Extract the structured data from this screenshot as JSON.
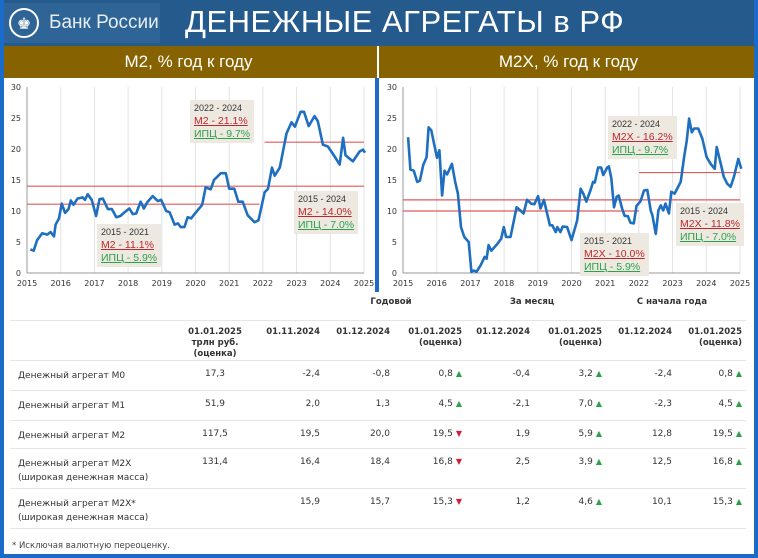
{
  "header": {
    "bank_name": "Банк России",
    "title": "ДЕНЕЖНЫЕ АГРЕГАТЫ в РФ",
    "emblem_icon": "double-eagle-emblem"
  },
  "colors": {
    "line": "#1f6fc0",
    "reference": "#e05a5a",
    "header": "#245a8c",
    "band": "#866300",
    "up": "#2aa14a",
    "down": "#d0203a"
  },
  "chart_data": [
    {
      "type": "line",
      "title": "M2, % год к году",
      "xlim": [
        2015,
        2025
      ],
      "ylim": [
        0,
        30
      ],
      "xticks": [
        "2015",
        "2016",
        "2017",
        "2018",
        "2019",
        "2020",
        "2021",
        "2022",
        "2023",
        "2024",
        "2025"
      ],
      "yticks": [
        "0",
        "5",
        "10",
        "15",
        "20",
        "25",
        "30"
      ],
      "grid": "vertical",
      "series": [
        {
          "values": [
            [
              2015.1,
              3.8
            ],
            [
              2015.2,
              3.6
            ],
            [
              2015.3,
              5.3
            ],
            [
              2015.45,
              6.4
            ],
            [
              2015.6,
              6.2
            ],
            [
              2015.7,
              6.6
            ],
            [
              2015.8,
              5.9
            ],
            [
              2015.85,
              7.8
            ],
            [
              2015.95,
              8.8
            ],
            [
              2016.03,
              11.2
            ],
            [
              2016.13,
              9.7
            ],
            [
              2016.23,
              10.3
            ],
            [
              2016.3,
              11.7
            ],
            [
              2016.38,
              11
            ],
            [
              2016.5,
              12
            ],
            [
              2016.65,
              12.2
            ],
            [
              2016.72,
              11.8
            ],
            [
              2016.8,
              12.7
            ],
            [
              2016.92,
              11.8
            ],
            [
              2017.05,
              9.2
            ],
            [
              2017.15,
              11.9
            ],
            [
              2017.25,
              12
            ],
            [
              2017.4,
              10.3
            ],
            [
              2017.52,
              10.3
            ],
            [
              2017.65,
              9
            ],
            [
              2017.77,
              9.2
            ],
            [
              2017.94,
              10
            ],
            [
              2018.04,
              10.4
            ],
            [
              2018.14,
              9.5
            ],
            [
              2018.24,
              9.6
            ],
            [
              2018.37,
              11.5
            ],
            [
              2018.47,
              10.4
            ],
            [
              2018.58,
              11.5
            ],
            [
              2018.73,
              12.4
            ],
            [
              2018.88,
              11.6
            ],
            [
              2018.98,
              11.8
            ],
            [
              2019.13,
              10
            ],
            [
              2019.23,
              9.8
            ],
            [
              2019.38,
              7.8
            ],
            [
              2019.48,
              8
            ],
            [
              2019.56,
              7.4
            ],
            [
              2019.67,
              7.4
            ],
            [
              2019.77,
              9
            ],
            [
              2019.87,
              8.8
            ],
            [
              2019.97,
              9.5
            ],
            [
              2020.2,
              11
            ],
            [
              2020.3,
              13.8
            ],
            [
              2020.45,
              13.5
            ],
            [
              2020.55,
              15
            ],
            [
              2020.75,
              16.1
            ],
            [
              2020.9,
              16.1
            ],
            [
              2021.0,
              13.6
            ],
            [
              2021.15,
              13.6
            ],
            [
              2021.27,
              11.5
            ],
            [
              2021.4,
              11.5
            ],
            [
              2021.55,
              9.3
            ],
            [
              2021.75,
              8.2
            ],
            [
              2021.87,
              8.5
            ],
            [
              2022.05,
              13
            ],
            [
              2022.15,
              13.6
            ],
            [
              2022.27,
              17
            ],
            [
              2022.35,
              15.7
            ],
            [
              2022.5,
              17
            ],
            [
              2022.7,
              22.5
            ],
            [
              2022.85,
              24.3
            ],
            [
              2022.95,
              23.6
            ],
            [
              2023.12,
              26
            ],
            [
              2023.22,
              26
            ],
            [
              2023.36,
              23.7
            ],
            [
              2023.53,
              25.3
            ],
            [
              2023.63,
              24.5
            ],
            [
              2023.78,
              20.7
            ],
            [
              2023.93,
              20.4
            ],
            [
              2024.08,
              19.2
            ],
            [
              2024.28,
              17.5
            ],
            [
              2024.38,
              21.8
            ],
            [
              2024.45,
              19
            ],
            [
              2024.67,
              18
            ],
            [
              2024.87,
              19.6
            ],
            [
              2024.97,
              19.9
            ],
            [
              2025.03,
              19.4
            ]
          ]
        }
      ],
      "reference_lines": [
        {
          "value": 11.1,
          "from": 2015,
          "to": 2021.9
        },
        {
          "value": 14.0,
          "from": 2015,
          "to": 2025
        },
        {
          "value": 21.1,
          "from": 2022.05,
          "to": 2025
        }
      ],
      "annotations": [
        {
          "period": "2022 - 2024",
          "agg": "M2 - 21.1%",
          "cpi": "ИПЦ - 9.7%"
        },
        {
          "period": "2015 - 2024",
          "agg": "M2 - 14.0%",
          "cpi": "ИПЦ - 7.0%"
        },
        {
          "period": "2015 - 2021",
          "agg": "M2 - 11.1%",
          "cpi": "ИПЦ - 5.9%"
        }
      ]
    },
    {
      "type": "line",
      "title": "M2X, % год к году",
      "xlim": [
        2015,
        2025
      ],
      "ylim": [
        0,
        30
      ],
      "xticks": [
        "2015",
        "2016",
        "2017",
        "2018",
        "2019",
        "2020",
        "2021",
        "2022",
        "2023",
        "2024",
        "2025"
      ],
      "yticks": [
        "0",
        "5",
        "10",
        "15",
        "20",
        "25",
        "30"
      ],
      "grid": "vertical",
      "series": [
        {
          "values": [
            [
              2015.15,
              21.9
            ],
            [
              2015.22,
              16.7
            ],
            [
              2015.32,
              16.5
            ],
            [
              2015.42,
              14.7
            ],
            [
              2015.5,
              14.9
            ],
            [
              2015.6,
              17.4
            ],
            [
              2015.7,
              18.7
            ],
            [
              2015.76,
              23.5
            ],
            [
              2015.84,
              23
            ],
            [
              2015.96,
              19.8
            ],
            [
              2016.01,
              18.6
            ],
            [
              2016.08,
              19.8
            ],
            [
              2016.16,
              12.5
            ],
            [
              2016.23,
              16.5
            ],
            [
              2016.31,
              15.9
            ],
            [
              2016.45,
              17.6
            ],
            [
              2016.55,
              14.7
            ],
            [
              2016.63,
              12.8
            ],
            [
              2016.72,
              7.4
            ],
            [
              2016.82,
              5.8
            ],
            [
              2016.95,
              5
            ],
            [
              2017.03,
              0.2
            ],
            [
              2017.1,
              0.4
            ],
            [
              2017.18,
              0.2
            ],
            [
              2017.3,
              1.2
            ],
            [
              2017.42,
              2.6
            ],
            [
              2017.48,
              2.3
            ],
            [
              2017.54,
              4.5
            ],
            [
              2017.62,
              3.6
            ],
            [
              2017.8,
              4.7
            ],
            [
              2017.91,
              5.5
            ],
            [
              2017.99,
              7.4
            ],
            [
              2018.06,
              5.8
            ],
            [
              2018.19,
              5.8
            ],
            [
              2018.37,
              10.6
            ],
            [
              2018.48,
              10.1
            ],
            [
              2018.58,
              9.6
            ],
            [
              2018.68,
              11.8
            ],
            [
              2018.8,
              11.2
            ],
            [
              2018.9,
              11.1
            ],
            [
              2019.01,
              12.4
            ],
            [
              2019.08,
              10.4
            ],
            [
              2019.18,
              11.8
            ],
            [
              2019.36,
              7.7
            ],
            [
              2019.43,
              7.7
            ],
            [
              2019.53,
              6.6
            ],
            [
              2019.58,
              7.4
            ],
            [
              2019.67,
              6.6
            ],
            [
              2019.74,
              7.5
            ],
            [
              2019.87,
              7.4
            ],
            [
              2020.0,
              5.3
            ],
            [
              2020.17,
              8.5
            ],
            [
              2020.27,
              13.6
            ],
            [
              2020.35,
              12.8
            ],
            [
              2020.44,
              11.5
            ],
            [
              2020.56,
              13.3
            ],
            [
              2020.64,
              14.7
            ],
            [
              2020.69,
              14.6
            ],
            [
              2020.79,
              17
            ],
            [
              2020.88,
              17
            ],
            [
              2020.94,
              15.8
            ],
            [
              2021.06,
              17
            ],
            [
              2021.11,
              17.2
            ],
            [
              2021.18,
              15.3
            ],
            [
              2021.26,
              10.6
            ],
            [
              2021.34,
              12.3
            ],
            [
              2021.4,
              12.5
            ],
            [
              2021.5,
              10.4
            ],
            [
              2021.58,
              9.2
            ],
            [
              2021.67,
              9.2
            ],
            [
              2021.75,
              8.1
            ],
            [
              2021.85,
              8
            ],
            [
              2021.93,
              10.8
            ],
            [
              2022.05,
              11.6
            ],
            [
              2022.15,
              13.3
            ],
            [
              2022.25,
              13.4
            ],
            [
              2022.35,
              10.1
            ],
            [
              2022.4,
              9.3
            ],
            [
              2022.5,
              6.3
            ],
            [
              2022.58,
              10.1
            ],
            [
              2022.65,
              10.9
            ],
            [
              2022.72,
              10.1
            ],
            [
              2022.79,
              11.2
            ],
            [
              2022.89,
              9.6
            ],
            [
              2022.96,
              13.1
            ],
            [
              2023.06,
              12.8
            ],
            [
              2023.24,
              14.7
            ],
            [
              2023.34,
              18.7
            ],
            [
              2023.42,
              21.4
            ],
            [
              2023.49,
              24.9
            ],
            [
              2023.57,
              22.7
            ],
            [
              2023.64,
              23.3
            ],
            [
              2023.76,
              23.3
            ],
            [
              2023.88,
              21.7
            ],
            [
              2024.01,
              18.7
            ],
            [
              2024.13,
              17.6
            ],
            [
              2024.25,
              16.8
            ],
            [
              2024.31,
              20.3
            ],
            [
              2024.43,
              17.6
            ],
            [
              2024.52,
              15.5
            ],
            [
              2024.62,
              14.4
            ],
            [
              2024.72,
              13.9
            ],
            [
              2024.82,
              15.5
            ],
            [
              2024.95,
              18.4
            ],
            [
              2025.04,
              16.8
            ]
          ]
        }
      ],
      "reference_lines": [
        {
          "value": 10.0,
          "from": 2015,
          "to": 2022
        },
        {
          "value": 11.8,
          "from": 2015,
          "to": 2025
        },
        {
          "value": 16.2,
          "from": 2022,
          "to": 2025
        }
      ],
      "annotations": [
        {
          "period": "2022 - 2024",
          "agg": "M2X - 16.2%",
          "cpi": "ИПЦ - 9.7%"
        },
        {
          "period": "2015 - 2024",
          "agg": "M2X - 11.8%",
          "cpi": "ИПЦ - 7.0%"
        },
        {
          "period": "2015 - 2021",
          "agg": "M2X - 10.0%",
          "cpi": "ИПЦ - 5.9%"
        }
      ]
    }
  ],
  "table": {
    "groups": [
      "Годовой",
      "За месяц",
      "С начала года"
    ],
    "columns": [
      [
        "01.01.2025",
        "трлн руб.",
        "(оценка)"
      ],
      [
        "01.11.2024"
      ],
      [
        "01.12.2024"
      ],
      [
        "01.01.2025",
        "(оценка)"
      ],
      [
        "01.12.2024"
      ],
      [
        "01.01.2025",
        "(оценка)"
      ],
      [
        "01.12.2024"
      ],
      [
        "01.01.2025",
        "(оценка)"
      ]
    ],
    "rows": [
      {
        "name": "Денежный агрегат M0",
        "sub": "",
        "values": [
          "17,3",
          "-2,4",
          "-0,8",
          "0,8",
          "-0,4",
          "3,2",
          "-2,4",
          "0,8"
        ],
        "arrows": [
          "up",
          "up",
          "up"
        ]
      },
      {
        "name": "Денежный агрегат M1",
        "sub": "",
        "values": [
          "51,9",
          "2,0",
          "1,3",
          "4,5",
          "-2,1",
          "7,0",
          "-2,3",
          "4,5"
        ],
        "arrows": [
          "up",
          "up",
          "up"
        ]
      },
      {
        "name": "Денежный агрегат M2",
        "sub": "",
        "values": [
          "117,5",
          "19,5",
          "20,0",
          "19,5",
          "1,9",
          "5,9",
          "12,8",
          "19,5"
        ],
        "arrows": [
          "down",
          "up",
          "up"
        ]
      },
      {
        "name": "Денежный агрегат M2X",
        "sub": "(широкая денежная масса)",
        "values": [
          "131,4",
          "16,4",
          "18,4",
          "16,8",
          "2,5",
          "3,9",
          "12,5",
          "16,8"
        ],
        "arrows": [
          "down",
          "up",
          "up"
        ]
      },
      {
        "name": "Денежный агрегат M2X*",
        "sub": "(широкая денежная масса)",
        "values": [
          "",
          "15,9",
          "15,7",
          "15,3",
          "1,2",
          "4,6",
          "10,1",
          "15,3"
        ],
        "arrows": [
          "down",
          "up",
          "up"
        ]
      }
    ],
    "footnote": "* Исключая валютную переоценку."
  }
}
